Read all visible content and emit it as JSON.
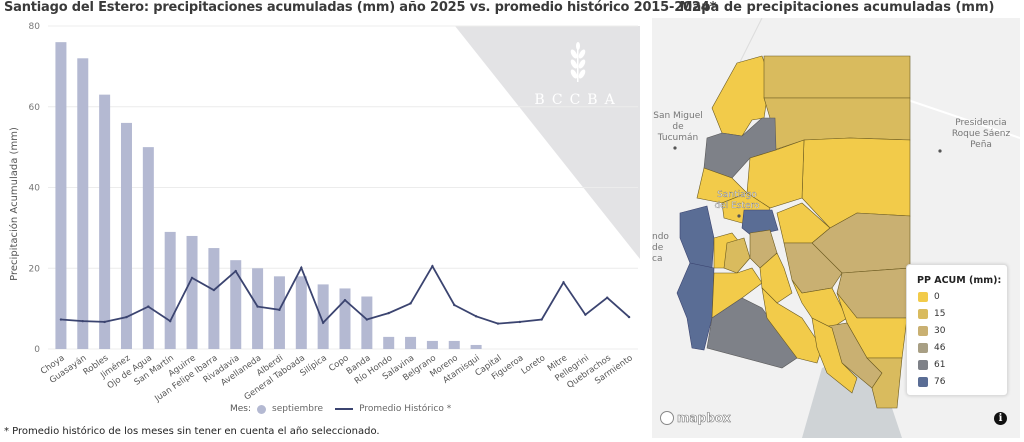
{
  "chart_data": {
    "type": "bar",
    "title": "Santiago del Estero: precipitaciones acumuladas (mm) año 2025 vs. promedio histórico 2015-2024*",
    "xlabel": "",
    "ylabel": "Precipitación Acumulada (mm)",
    "ylim": [
      0,
      80
    ],
    "yticks": [
      0,
      20,
      40,
      60,
      80
    ],
    "grid": true,
    "legend_position": "bottom",
    "legend_title": "Mes:",
    "categories": [
      "Choya",
      "Guasayán",
      "Robles",
      "Jiménez",
      "Ojo de Agua",
      "San Martín",
      "Aguirre",
      "Juan Felipe Ibarra",
      "Rivadavia",
      "Avellaneda",
      "Alberdi",
      "General Taboada",
      "Silípica",
      "Copo",
      "Banda",
      "Río Hondo",
      "Salavina",
      "Belgrano",
      "Moreno",
      "Atamisqui",
      "Capital",
      "Figueroa",
      "Loreto",
      "Mitre",
      "Pellegrini",
      "Quebrachos",
      "Sarmiento"
    ],
    "series": [
      {
        "name": "septiembre",
        "type": "bar",
        "color": "#b4b9d2",
        "values": [
          76,
          72,
          63,
          56,
          50,
          29,
          28,
          25,
          22,
          20,
          18,
          18,
          16,
          15,
          13,
          3,
          3,
          2,
          2,
          1,
          0,
          0,
          0,
          0,
          0,
          0,
          0
        ]
      },
      {
        "name": "Promedio Histórico *",
        "type": "line",
        "color": "#3b4470",
        "values": [
          7.3,
          6.9,
          6.7,
          7.9,
          10.5,
          6.9,
          17.6,
          14.6,
          19.3,
          10.5,
          9.7,
          20.1,
          6.5,
          12.1,
          7.3,
          8.9,
          11.3,
          20.5,
          10.9,
          8.1,
          6.3,
          6.7,
          7.3,
          16.5,
          8.5,
          12.7,
          7.9
        ]
      }
    ],
    "watermark": "BCCBA"
  },
  "footnote": "* Promedio histórico de los meses sin tener en cuenta el año seleccionado.",
  "map": {
    "title": "Mapa de precipitaciones acumuladas (mm)",
    "legend_title": "PP ACUM (mm):",
    "legend": [
      {
        "label": "0",
        "color": "#f2cb4a"
      },
      {
        "label": "15",
        "color": "#d9bb5e"
      },
      {
        "label": "30",
        "color": "#c9b072"
      },
      {
        "label": "46",
        "color": "#a89f84"
      },
      {
        "label": "61",
        "color": "#7e8188"
      },
      {
        "label": "76",
        "color": "#5a6d95"
      }
    ],
    "places": [
      "San Miguel de Tucumán",
      "Santiago del Estero",
      "Presidencia Roque Sáenz Peña",
      "ndo de ca"
    ],
    "attribution": "mapbox",
    "info_icon": "i"
  }
}
